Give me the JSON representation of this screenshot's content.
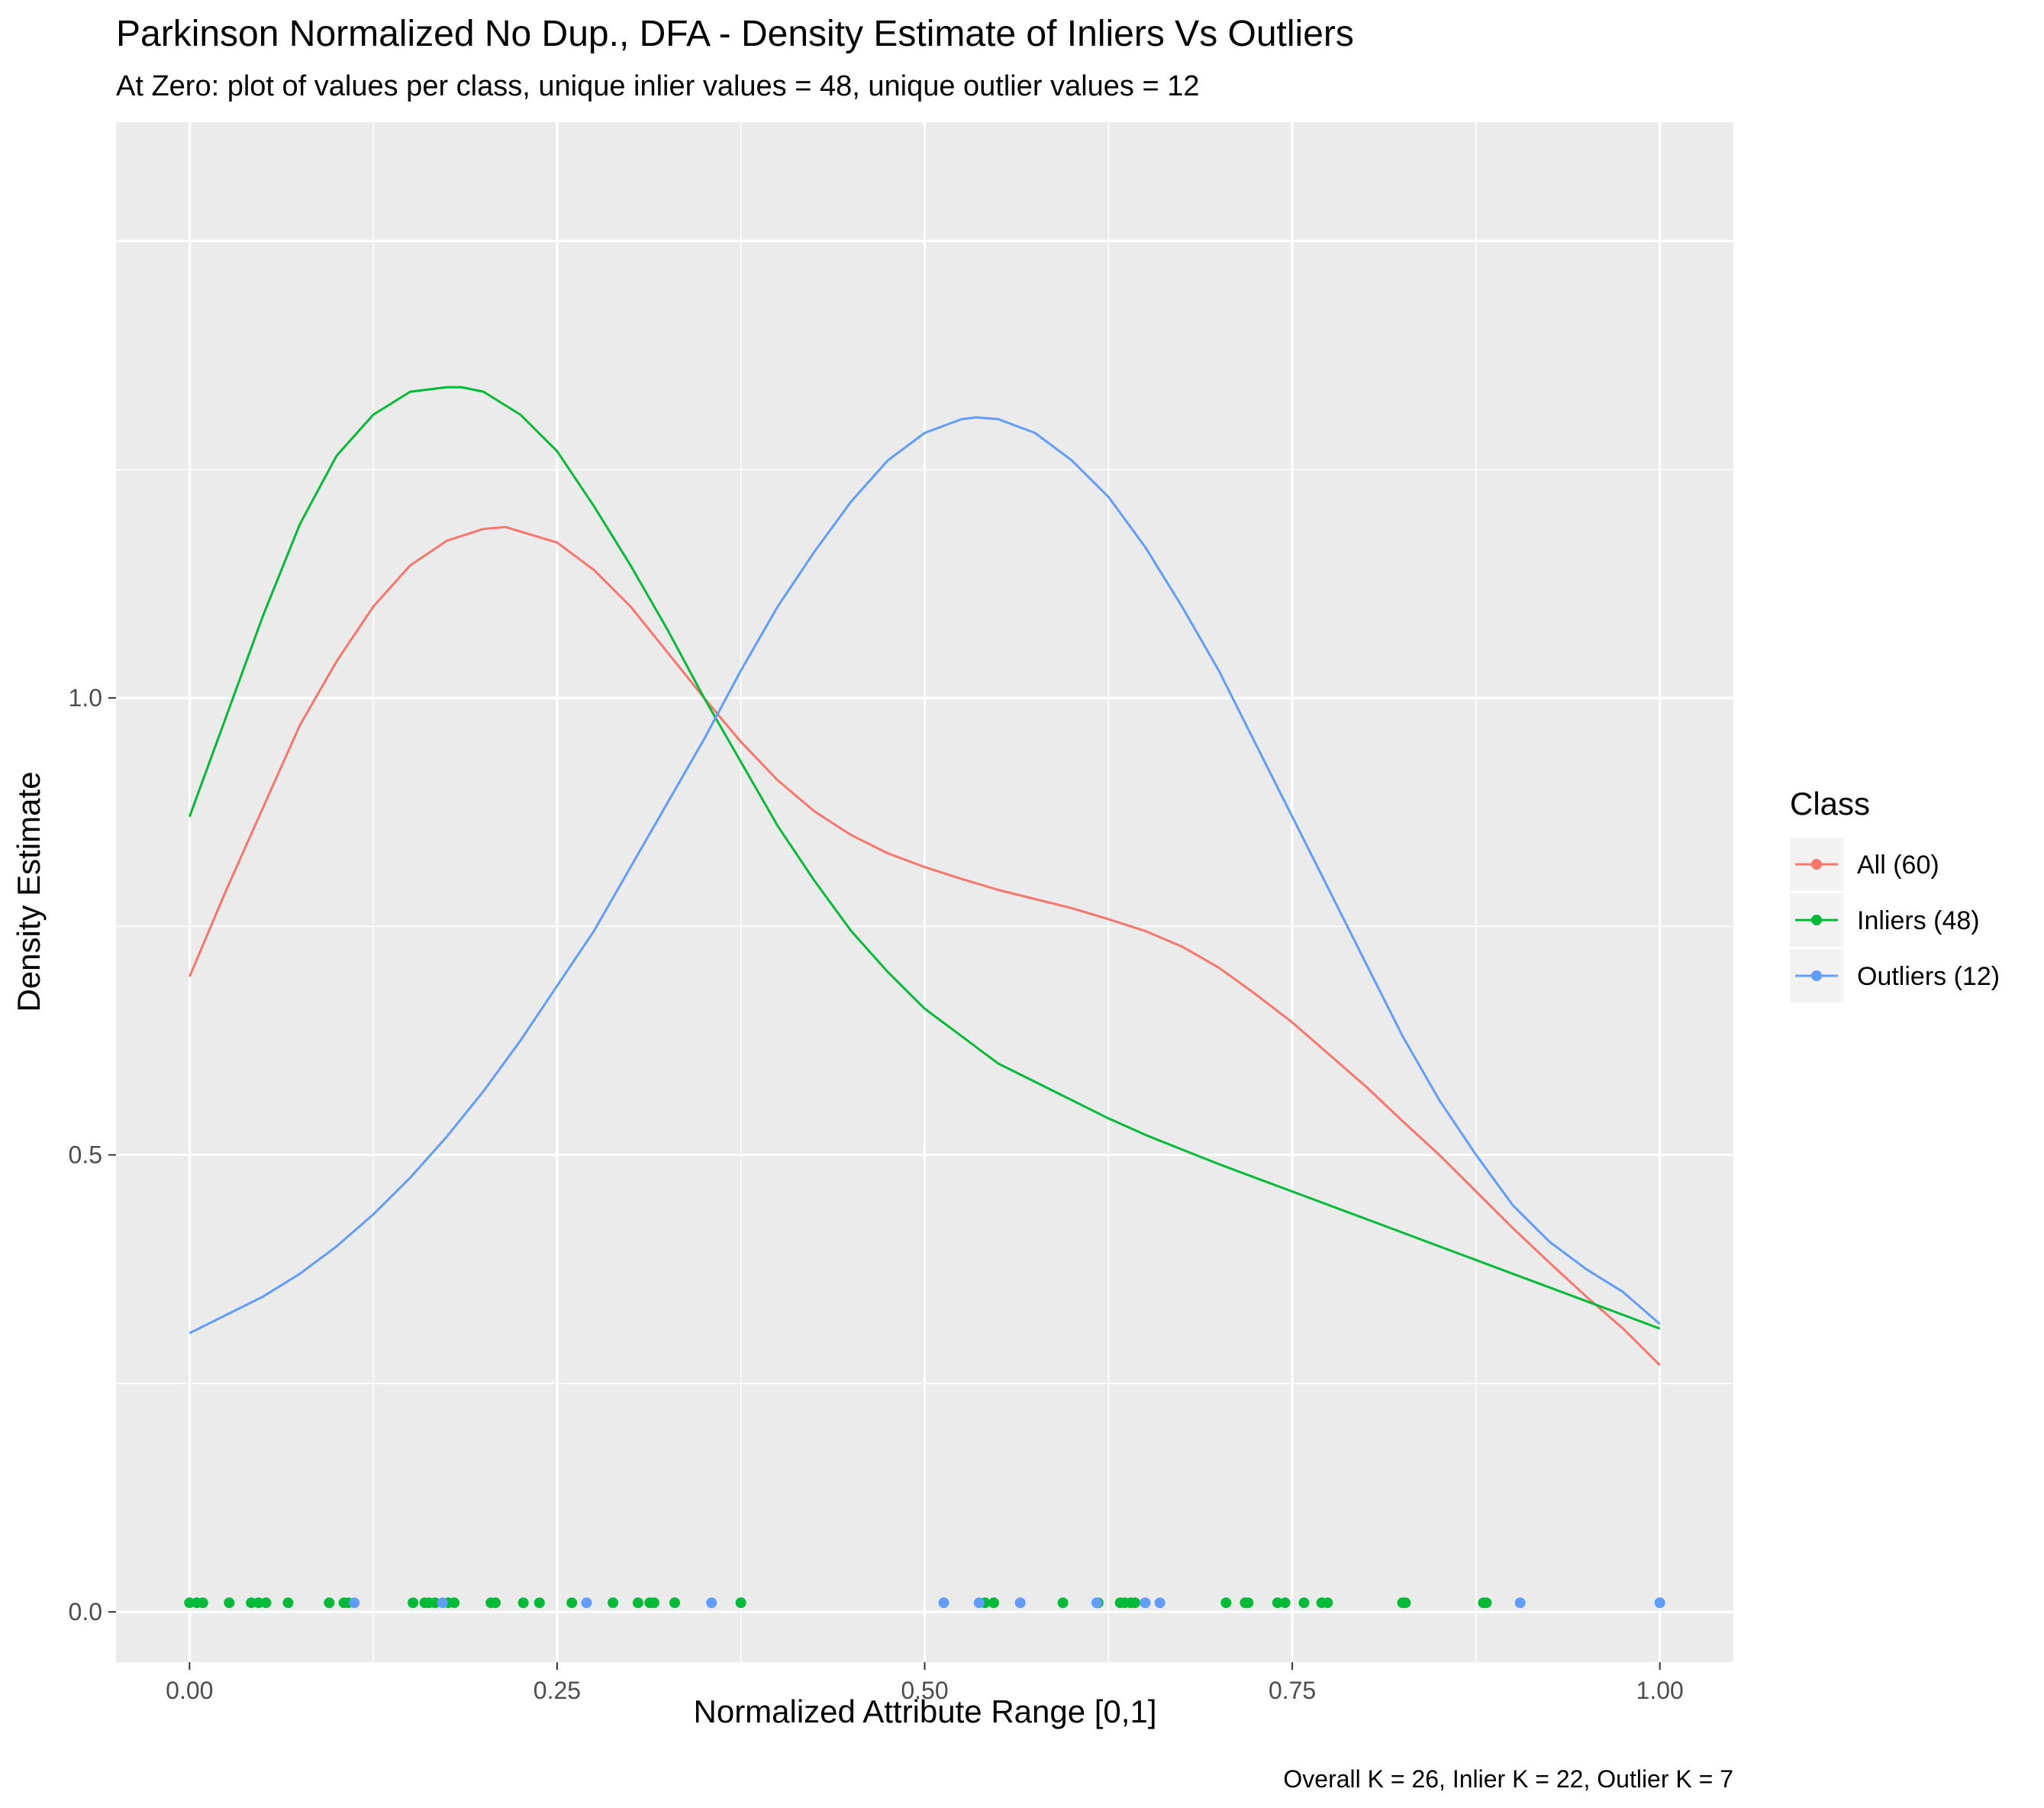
{
  "chart_data": {
    "type": "line",
    "title": "Parkinson Normalized No Dup., DFA - Density Estimate of Inliers Vs Outliers",
    "subtitle": "At Zero: plot of values per class, unique inlier values = 48, unique outlier values = 12",
    "caption": "Overall K = 26, Inlier K = 22, Outlier K = 7",
    "xlabel": "Normalized Attribute Range [0,1]",
    "ylabel": "Density Estimate",
    "xlim": [
      -0.05,
      1.05
    ],
    "ylim": [
      -0.055,
      1.63
    ],
    "x_ticks": [
      {
        "value": 0.0,
        "label": "0.00"
      },
      {
        "value": 0.25,
        "label": "0.25"
      },
      {
        "value": 0.5,
        "label": "0.50"
      },
      {
        "value": 0.75,
        "label": "0.75"
      },
      {
        "value": 1.0,
        "label": "1.00"
      }
    ],
    "y_ticks": [
      {
        "value": 0.0,
        "label": "0.0"
      },
      {
        "value": 0.5,
        "label": "0.5"
      },
      {
        "value": 1.0,
        "label": "1.0"
      }
    ],
    "grid": true,
    "legend": {
      "title": "Class",
      "position": "right",
      "entries": [
        {
          "label": "All (60)",
          "color": "#F8766D"
        },
        {
          "label": "Inliers (48)",
          "color": "#00BA38"
        },
        {
          "label": "Outliers (12)",
          "color": "#619CFF"
        }
      ]
    },
    "series": [
      {
        "name": "All (60)",
        "color": "#F8766D",
        "x": [
          0.0,
          0.025,
          0.05,
          0.075,
          0.1,
          0.125,
          0.15,
          0.175,
          0.2,
          0.215,
          0.25,
          0.275,
          0.3,
          0.325,
          0.35,
          0.375,
          0.4,
          0.425,
          0.45,
          0.475,
          0.5,
          0.525,
          0.55,
          0.575,
          0.6,
          0.625,
          0.65,
          0.675,
          0.7,
          0.725,
          0.75,
          0.775,
          0.8,
          0.825,
          0.85,
          0.875,
          0.9,
          0.925,
          0.95,
          0.975,
          1.0
        ],
        "y": [
          0.695,
          0.79,
          0.88,
          0.97,
          1.04,
          1.1,
          1.145,
          1.172,
          1.185,
          1.187,
          1.17,
          1.14,
          1.1,
          1.05,
          1.0,
          0.952,
          0.91,
          0.876,
          0.85,
          0.83,
          0.815,
          0.802,
          0.79,
          0.78,
          0.77,
          0.758,
          0.745,
          0.728,
          0.705,
          0.676,
          0.645,
          0.61,
          0.575,
          0.537,
          0.5,
          0.46,
          0.42,
          0.382,
          0.345,
          0.31,
          0.27
        ]
      },
      {
        "name": "Inliers (48)",
        "color": "#00BA38",
        "x": [
          0.0,
          0.025,
          0.05,
          0.075,
          0.1,
          0.125,
          0.15,
          0.175,
          0.185,
          0.2,
          0.225,
          0.25,
          0.275,
          0.3,
          0.325,
          0.35,
          0.375,
          0.4,
          0.425,
          0.45,
          0.475,
          0.5,
          0.525,
          0.55,
          0.575,
          0.6,
          0.625,
          0.65,
          0.675,
          0.7,
          0.725,
          0.75,
          0.775,
          0.8,
          0.825,
          0.85,
          0.875,
          0.9,
          0.925,
          0.95,
          0.975,
          1.0
        ],
        "y": [
          0.87,
          0.98,
          1.09,
          1.19,
          1.265,
          1.31,
          1.335,
          1.34,
          1.34,
          1.335,
          1.31,
          1.27,
          1.21,
          1.145,
          1.075,
          1.0,
          0.93,
          0.86,
          0.8,
          0.745,
          0.7,
          0.66,
          0.63,
          0.6,
          0.58,
          0.56,
          0.54,
          0.522,
          0.506,
          0.49,
          0.475,
          0.46,
          0.445,
          0.43,
          0.415,
          0.4,
          0.385,
          0.37,
          0.355,
          0.34,
          0.325,
          0.31
        ]
      },
      {
        "name": "Outliers (12)",
        "color": "#619CFF",
        "x": [
          0.0,
          0.025,
          0.05,
          0.075,
          0.1,
          0.125,
          0.15,
          0.175,
          0.2,
          0.225,
          0.25,
          0.275,
          0.3,
          0.325,
          0.35,
          0.375,
          0.4,
          0.425,
          0.45,
          0.475,
          0.5,
          0.525,
          0.535,
          0.55,
          0.575,
          0.6,
          0.625,
          0.65,
          0.675,
          0.7,
          0.725,
          0.75,
          0.775,
          0.8,
          0.825,
          0.85,
          0.875,
          0.9,
          0.925,
          0.95,
          0.975,
          1.0
        ],
        "y": [
          0.305,
          0.325,
          0.345,
          0.37,
          0.4,
          0.435,
          0.475,
          0.52,
          0.57,
          0.625,
          0.685,
          0.745,
          0.815,
          0.885,
          0.955,
          1.03,
          1.1,
          1.16,
          1.215,
          1.26,
          1.29,
          1.305,
          1.307,
          1.305,
          1.29,
          1.26,
          1.22,
          1.165,
          1.1,
          1.03,
          0.95,
          0.87,
          0.79,
          0.71,
          0.63,
          0.56,
          0.5,
          0.445,
          0.405,
          0.375,
          0.35,
          0.315
        ]
      }
    ],
    "rug_points": [
      {
        "class": "Inliers (48)",
        "color": "#00BA38",
        "y": 0.01,
        "x": [
          0.0,
          0.005,
          0.009,
          0.027,
          0.042,
          0.047,
          0.052,
          0.067,
          0.095,
          0.105,
          0.108,
          0.152,
          0.16,
          0.163,
          0.167,
          0.176,
          0.18,
          0.205,
          0.208,
          0.227,
          0.238,
          0.26,
          0.288,
          0.305,
          0.313,
          0.316,
          0.33,
          0.375,
          0.541,
          0.547,
          0.594,
          0.618,
          0.633,
          0.636,
          0.64,
          0.643,
          0.705,
          0.718,
          0.72,
          0.74,
          0.745,
          0.758,
          0.77,
          0.774,
          0.825,
          0.827,
          0.88,
          0.882
        ]
      },
      {
        "class": "Outliers (12)",
        "color": "#619CFF",
        "y": 0.01,
        "x": [
          0.112,
          0.172,
          0.27,
          0.355,
          0.513,
          0.537,
          0.565,
          0.617,
          0.65,
          0.66,
          0.905,
          1.0
        ]
      }
    ]
  }
}
